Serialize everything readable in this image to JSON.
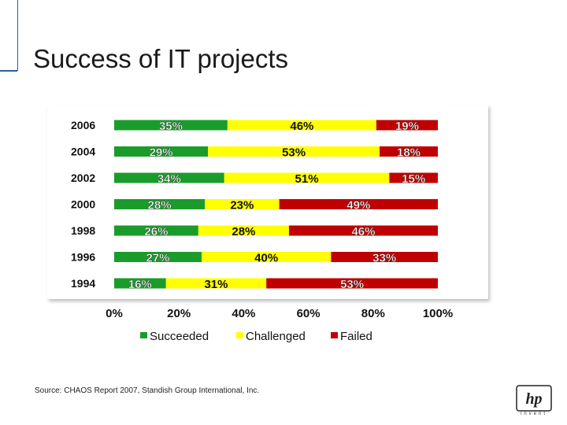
{
  "slide": {
    "title": "Success of IT projects",
    "source": "Source: CHAOS Report 2007, Standish Group International, Inc.",
    "logo_text": "hp",
    "logo_subtext": "invent"
  },
  "chart_data": {
    "type": "bar",
    "orientation": "horizontal",
    "stacked": true,
    "categories": [
      "2006",
      "2004",
      "2002",
      "2000",
      "1998",
      "1996",
      "1994"
    ],
    "series": [
      {
        "name": "Succeeded",
        "color": "#1a9c2a",
        "values": [
          35,
          29,
          34,
          28,
          26,
          27,
          16
        ]
      },
      {
        "name": "Challenged",
        "color": "#ffff00",
        "values": [
          46,
          53,
          51,
          23,
          28,
          40,
          31
        ]
      },
      {
        "name": "Failed",
        "color": "#c00000",
        "values": [
          19,
          18,
          15,
          49,
          46,
          33,
          53
        ]
      }
    ],
    "xlim": [
      0,
      100
    ],
    "xticks": [
      "0%",
      "20%",
      "40%",
      "60%",
      "80%",
      "100%"
    ],
    "value_suffix": "%",
    "legend_position": "bottom",
    "grid": false
  }
}
